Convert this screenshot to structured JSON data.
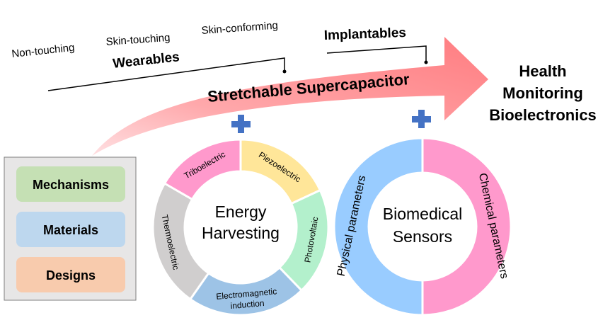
{
  "stages": {
    "non_touching": "Non-touching",
    "skin_touching": "Skin-touching",
    "skin_conforming": "Skin-conforming",
    "wearables": "Wearables",
    "implantables": "Implantables"
  },
  "arrow_label": "Stretchable Supercapacitor",
  "target": {
    "line1": "Health",
    "line2": "Monitoring",
    "line3": "Bioelectronics"
  },
  "left_box": {
    "items": [
      {
        "label": "Mechanisms",
        "color": "#c5e0b4"
      },
      {
        "label": "Materials",
        "color": "#bdd7ee"
      },
      {
        "label": "Designs",
        "color": "#f8cbad"
      }
    ],
    "background": "#e7e6e6"
  },
  "energy_ring": {
    "center_line1": "Energy",
    "center_line2": "Harvesting",
    "segments": [
      {
        "label": "Piezoelectric",
        "color": "#ffe699"
      },
      {
        "label": "Photovoltaic",
        "color": "#b3f0cc"
      },
      {
        "label_line1": "Electromagnetic",
        "label_line2": "induction",
        "color": "#9dc3e6"
      },
      {
        "label": "Thermoelectric",
        "color": "#d0cece"
      },
      {
        "label": "Triboelectric",
        "color": "#ff99cc"
      }
    ]
  },
  "sensor_ring": {
    "center_line1": "Biomedical",
    "center_line2": "Sensors",
    "segments": [
      {
        "label": "Physical parameters",
        "color": "#99ccff"
      },
      {
        "label": "Chemical parameters",
        "color": "#ff99cc"
      }
    ]
  },
  "colors": {
    "arrow": "#ff7c80",
    "plus": "#4472c4"
  }
}
